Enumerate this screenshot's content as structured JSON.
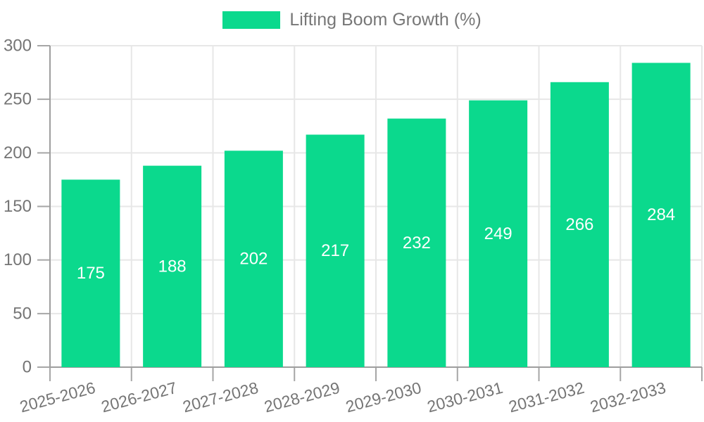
{
  "chart_data": {
    "type": "bar",
    "title": "Lifting Boom Growth (%)",
    "series_name": "Lifting Boom Growth (%)",
    "categories": [
      "2025-2026",
      "2026-2027",
      "2027-2028",
      "2028-2029",
      "2029-2030",
      "2030-2031",
      "2031-2032",
      "2032-2033"
    ],
    "values": [
      175,
      188,
      202,
      217,
      232,
      249,
      266,
      284
    ],
    "value_labels": [
      "175",
      "188",
      "202",
      "217",
      "232",
      "249",
      "266",
      "284"
    ],
    "xlabel": "",
    "ylabel": "",
    "ylim": [
      0,
      300
    ],
    "yticks": [
      0,
      50,
      100,
      150,
      200,
      250,
      300
    ],
    "ytick_labels": [
      "0",
      "50",
      "100",
      "150",
      "200",
      "250",
      "300"
    ],
    "grid": true,
    "legend_position": "top",
    "x_label_rotation_deg": -15,
    "colors": {
      "bar": "#0bd98d",
      "value_label": "#ffffff",
      "axis_line": "#9e9e9e",
      "tick_line": "#a6a6a6",
      "grid_line": "#e7e7e7",
      "axis_text": "#757575",
      "legend_text": "#777777",
      "background": "#ffffff"
    }
  }
}
